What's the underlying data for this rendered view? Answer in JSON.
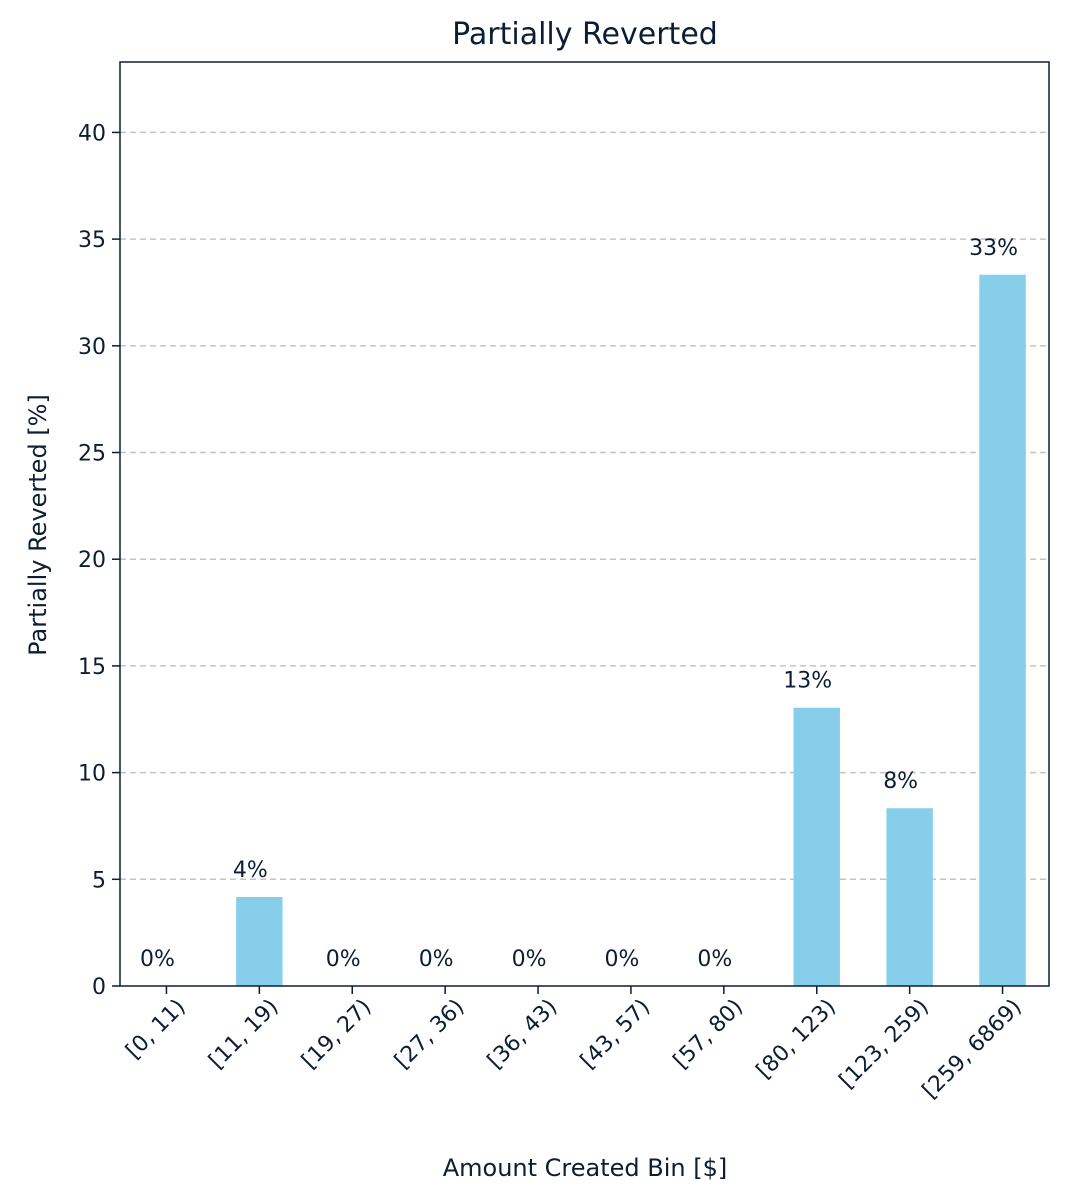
{
  "chart_data": {
    "type": "bar",
    "title": "Partially Reverted",
    "xlabel": "Amount Created Bin [$]",
    "ylabel": "Partially Reverted [%]",
    "categories": [
      "[0, 11)",
      "[11, 19)",
      "[19, 27)",
      "[27, 36)",
      "[36, 43)",
      "[43, 57)",
      "[57, 80)",
      "[80, 123)",
      "[123, 259)",
      "[259, 6869)"
    ],
    "values": [
      0,
      4.17,
      0,
      0,
      0,
      0,
      0,
      13.04,
      8.33,
      33.33
    ],
    "data_labels": [
      "0%",
      "4%",
      "0%",
      "0%",
      "0%",
      "0%",
      "0%",
      "13%",
      "8%",
      "33%"
    ],
    "ylim": [
      0,
      43.3
    ],
    "yticks": [
      0,
      5,
      10,
      15,
      20,
      25,
      30,
      35,
      40
    ],
    "grid": "y, dashed",
    "bar_color": "#87ceeb",
    "legend": "none"
  }
}
